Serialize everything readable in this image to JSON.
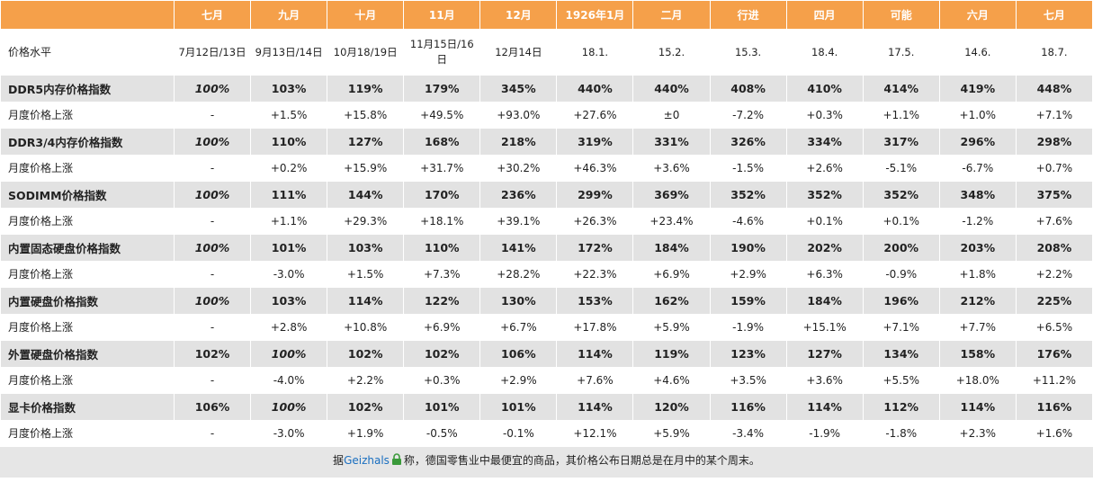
{
  "table": {
    "header": [
      "七月",
      "九月",
      "十月",
      "11月",
      "12月",
      "1926年1月",
      "二月",
      "行进",
      "四月",
      "可能",
      "六月",
      "七月"
    ],
    "dates": {
      "label": "价格水平",
      "cells": [
        "7月12日/13日",
        "9月13日/14日",
        "10月18/19日",
        "11月15日/16日",
        "12月14日",
        "18.1.",
        "15.2.",
        "15.3.",
        "18.4.",
        "17.5.",
        "14.6.",
        "18.7."
      ]
    },
    "rows": [
      {
        "label": "DDR5内存价格指数",
        "cells": [
          "100%",
          "103%",
          "119%",
          "179%",
          "345%",
          "440%",
          "440%",
          "408%",
          "410%",
          "414%",
          "419%",
          "448%"
        ]
      },
      {
        "label": "月度价格上涨",
        "cells": [
          "-",
          "+1.5%",
          "+15.8%",
          "+49.5%",
          "+93.0%",
          "+27.6%",
          "±0",
          "-7.2%",
          "+0.3%",
          "+1.1%",
          "+1.0%",
          "+7.1%"
        ]
      },
      {
        "label": "DDR3/4内存价格指数",
        "cells": [
          "100%",
          "110%",
          "127%",
          "168%",
          "218%",
          "319%",
          "331%",
          "326%",
          "334%",
          "317%",
          "296%",
          "298%"
        ]
      },
      {
        "label": "月度价格上涨",
        "cells": [
          "-",
          "+0.2%",
          "+15.9%",
          "+31.7%",
          "+30.2%",
          "+46.3%",
          "+3.6%",
          "-1.5%",
          "+2.6%",
          "-5.1%",
          "-6.7%",
          "+0.7%"
        ]
      },
      {
        "label": "SODIMM价格指数",
        "cells": [
          "100%",
          "111%",
          "144%",
          "170%",
          "236%",
          "299%",
          "369%",
          "352%",
          "352%",
          "352%",
          "348%",
          "375%"
        ]
      },
      {
        "label": "月度价格上涨",
        "cells": [
          "-",
          "+1.1%",
          "+29.3%",
          "+18.1%",
          "+39.1%",
          "+26.3%",
          "+23.4%",
          "-4.6%",
          "+0.1%",
          "+0.1%",
          "-1.2%",
          "+7.6%"
        ]
      },
      {
        "label": "内置固态硬盘价格指数",
        "cells": [
          "100%",
          "101%",
          "103%",
          "110%",
          "141%",
          "172%",
          "184%",
          "190%",
          "202%",
          "200%",
          "203%",
          "208%"
        ]
      },
      {
        "label": "月度价格上涨",
        "cells": [
          "-",
          "-3.0%",
          "+1.5%",
          "+7.3%",
          "+28.2%",
          "+22.3%",
          "+6.9%",
          "+2.9%",
          "+6.3%",
          "-0.9%",
          "+1.8%",
          "+2.2%"
        ]
      },
      {
        "label": "内置硬盘价格指数",
        "cells": [
          "100%",
          "103%",
          "114%",
          "122%",
          "130%",
          "153%",
          "162%",
          "159%",
          "184%",
          "196%",
          "212%",
          "225%"
        ]
      },
      {
        "label": "月度价格上涨",
        "cells": [
          "-",
          "+2.8%",
          "+10.8%",
          "+6.9%",
          "+6.7%",
          "+17.8%",
          "+5.9%",
          "-1.9%",
          "+15.1%",
          "+7.1%",
          "+7.7%",
          "+6.5%"
        ]
      },
      {
        "label": "外置硬盘价格指数",
        "cells": [
          "102%",
          "100%",
          "102%",
          "102%",
          "106%",
          "114%",
          "119%",
          "123%",
          "127%",
          "134%",
          "158%",
          "176%"
        ]
      },
      {
        "label": "月度价格上涨",
        "cells": [
          "-",
          "-4.0%",
          "+2.2%",
          "+0.3%",
          "+2.9%",
          "+7.6%",
          "+4.6%",
          "+3.5%",
          "+3.6%",
          "+5.5%",
          "+18.0%",
          "+11.2%"
        ]
      },
      {
        "label": "显卡价格指数",
        "cells": [
          "106%",
          "100%",
          "102%",
          "101%",
          "101%",
          "114%",
          "120%",
          "116%",
          "114%",
          "112%",
          "114%",
          "116%"
        ]
      },
      {
        "label": "月度价格上涨",
        "cells": [
          "-",
          "-3.0%",
          "+1.9%",
          "-0.5%",
          "-0.1%",
          "+12.1%",
          "+5.9%",
          "-3.4%",
          "-1.9%",
          "-1.8%",
          "+2.3%",
          "+1.6%"
        ]
      }
    ]
  },
  "footer": {
    "prefix": "据",
    "link": "Geizhals",
    "suffix": "称，德国零售业中最便宜的商品，其价格公布日期总是在月中的某个周末。"
  }
}
